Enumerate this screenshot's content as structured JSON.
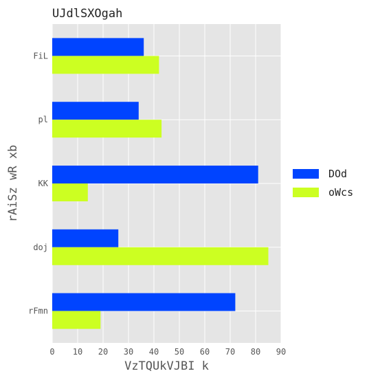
{
  "chart_data": {
    "type": "bar",
    "orientation": "horizontal",
    "title": "UJdlSXOgah",
    "xlabel": "VzTQUkVJBI k",
    "ylabel": "rAiSz wR xb",
    "categories": [
      "FiL",
      "pl",
      "KK",
      "doj",
      "rFmn"
    ],
    "series": [
      {
        "name": "DOd",
        "color": "#0044ff",
        "values": [
          36,
          34,
          81,
          26,
          72
        ]
      },
      {
        "name": "oWcs",
        "color": "#ccff22",
        "values": [
          42,
          43,
          14,
          85,
          19
        ]
      }
    ],
    "xlim": [
      0,
      90
    ],
    "xticks": [
      0,
      10,
      20,
      30,
      40,
      50,
      60,
      70,
      80,
      90
    ],
    "grid": true,
    "legend_position": "right",
    "background_color": "#e5e5e5",
    "grid_color": "#ffffff"
  }
}
